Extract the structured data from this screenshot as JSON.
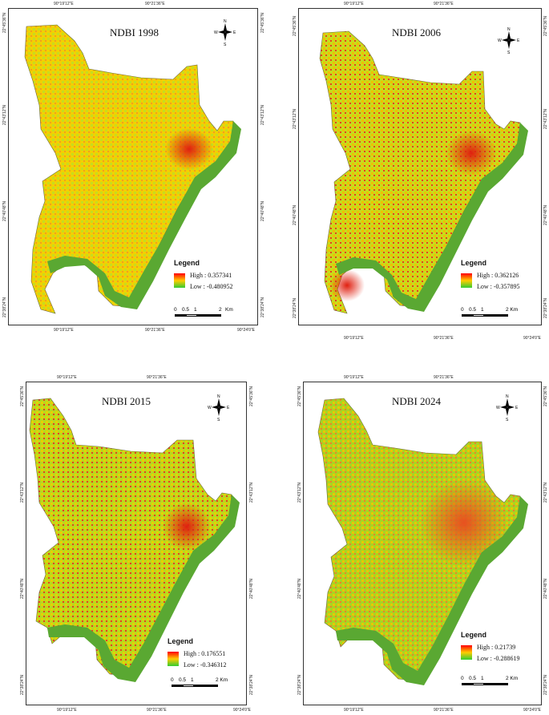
{
  "panels": [
    {
      "title": "NDBI 1998",
      "legend_title": "Legend",
      "high_label": "High : 0.357341",
      "low_label": "Low : -0.480952",
      "top_coords": [
        "90°19'12\"E",
        "90°21'36\"E",
        ""
      ],
      "bottom_coords": [
        "90°19'12\"E",
        "90°21'36\"E",
        "90°24'0\"E"
      ],
      "left_coords": [
        "22°45'36\"N",
        "22°43'12\"N",
        "22°40'48\"N",
        "22°38'24\"N"
      ],
      "right_coords": [
        "22°45'36\"N",
        "22°43'12\"N",
        "22°40'48\"N",
        "22°38'24\"N"
      ],
      "scale_labels": [
        "0",
        "0.5",
        "1",
        "2"
      ],
      "scale_unit": "Km",
      "compass": {
        "n": "N",
        "s": "S",
        "e": "E",
        "w": "W"
      }
    },
    {
      "title": "NDBI 2006",
      "legend_title": "Legend",
      "high_label": "High : 0.362126",
      "low_label": "Low : -0.357895",
      "top_coords": [
        "90°19'12\"E",
        "90°21'36\"E",
        ""
      ],
      "bottom_coords": [
        "90°19'12\"E",
        "90°21'36\"E",
        "90°24'0\"E"
      ],
      "left_coords": [
        "22°45'36\"N",
        "22°43'12\"N",
        "22°40'48\"N",
        "22°38'24\"N"
      ],
      "right_coords": [
        "22°45'36\"N",
        "22°43'12\"N",
        "22°40'48\"N",
        "22°38'24\"N"
      ],
      "scale_labels": [
        "0",
        "0.5",
        "1",
        "2 Km"
      ],
      "scale_unit": "",
      "compass": {
        "n": "N",
        "s": "S",
        "e": "E",
        "w": "W"
      }
    },
    {
      "title": "NDBI 2015",
      "legend_title": "Legend",
      "high_label": "High : 0.176551",
      "low_label": "Low : -0.346312",
      "top_coords": [
        "90°19'12\"E",
        "90°21'36\"E",
        ""
      ],
      "bottom_coords": [
        "90°19'12\"E",
        "90°21'36\"E",
        "90°24'0\"E"
      ],
      "left_coords": [
        "22°45'36\"N",
        "22°43'12\"N",
        "22°40'48\"N",
        "22°38'24\"N"
      ],
      "right_coords": [
        "22°45'36\"N",
        "22°43'12\"N",
        "22°40'48\"N",
        "22°38'24\"N"
      ],
      "scale_labels": [
        "0",
        "0.5",
        "1",
        "2 Km"
      ],
      "scale_unit": "",
      "compass": {
        "n": "N",
        "s": "S",
        "e": "E",
        "w": "W"
      }
    },
    {
      "title": "NDBI 2024",
      "legend_title": "Legend",
      "high_label": "High : 0.21739",
      "low_label": "Low : -0.288619",
      "top_coords": [
        "90°19'12\"E",
        "90°21'36\"E",
        ""
      ],
      "bottom_coords": [
        "90°19'12\"E",
        "90°21'36\"E",
        "90°24'0\"E"
      ],
      "left_coords": [
        "22°45'36\"N",
        "22°43'12\"N",
        "22°40'48\"N",
        "22°38'24\"N"
      ],
      "right_coords": [
        "22°45'36\"N",
        "22°43'12\"N",
        "22°40'48\"N",
        "22°38'24\"N"
      ],
      "scale_labels": [
        "0",
        "0.5",
        "1",
        "2 Km"
      ],
      "scale_unit": "",
      "compass": {
        "n": "N",
        "s": "S",
        "e": "E",
        "w": "W"
      }
    }
  ],
  "colors": {
    "high": "#ff0000",
    "mid": "#ffcc00",
    "low": "#33cc33",
    "river": "#5aa832",
    "frame": "#333333"
  }
}
